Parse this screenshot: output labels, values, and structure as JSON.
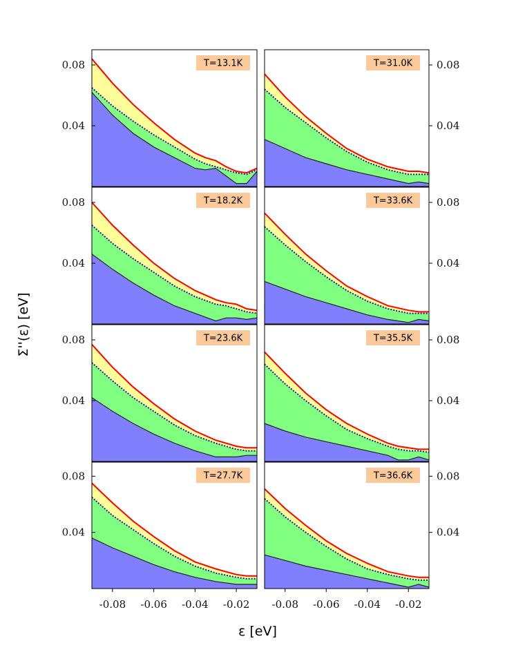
{
  "figure": {
    "ylabel": "Σ''(ε) [eV]",
    "xlabel": "ε [eV]",
    "colors": {
      "blue": "#8080ff",
      "green": "#80ff80",
      "yellow": "#ffff99",
      "red_line": "#ff0000",
      "dotted_line": "#1a1aa0",
      "label_box": "#fcc99a"
    }
  },
  "chart_data": [
    {
      "type": "area",
      "label": "T=13.1K",
      "xlim": [
        -0.09,
        -0.01
      ],
      "ylim": [
        0,
        0.09
      ],
      "yticks": [
        "0.08",
        "0.04"
      ],
      "ytick_values": [
        0.08,
        0.04
      ],
      "ytick_side": "left",
      "x": [
        -0.09,
        -0.08,
        -0.07,
        -0.06,
        -0.05,
        -0.04,
        -0.035,
        -0.03,
        -0.025,
        -0.02,
        -0.015,
        -0.01
      ],
      "red": [
        0.084,
        0.068,
        0.054,
        0.042,
        0.031,
        0.022,
        0.019,
        0.017,
        0.013,
        0.01,
        0.009,
        0.012
      ],
      "dotted": [
        0.065,
        0.053,
        0.043,
        0.034,
        0.026,
        0.018,
        0.015,
        0.013,
        0.011,
        0.009,
        0.008,
        0.011
      ],
      "blue": [
        0.062,
        0.047,
        0.035,
        0.026,
        0.019,
        0.012,
        0.011,
        0.012,
        0.007,
        0.002,
        0.002,
        0.01
      ]
    },
    {
      "type": "area",
      "label": "T=31.0K",
      "xlim": [
        -0.09,
        -0.01
      ],
      "ylim": [
        0,
        0.09
      ],
      "yticks": [
        "0.08",
        "0.04"
      ],
      "ytick_values": [
        0.08,
        0.04
      ],
      "ytick_side": "right",
      "x": [
        -0.09,
        -0.08,
        -0.07,
        -0.06,
        -0.05,
        -0.04,
        -0.03,
        -0.02,
        -0.015,
        -0.01
      ],
      "red": [
        0.074,
        0.059,
        0.046,
        0.035,
        0.025,
        0.018,
        0.013,
        0.01,
        0.01,
        0.009
      ],
      "dotted": [
        0.064,
        0.052,
        0.042,
        0.032,
        0.023,
        0.016,
        0.011,
        0.008,
        0.008,
        0.008
      ],
      "blue": [
        0.031,
        0.025,
        0.019,
        0.015,
        0.011,
        0.008,
        0.005,
        0.002,
        0.003,
        0.002
      ]
    },
    {
      "type": "area",
      "label": "T=18.2K",
      "xlim": [
        -0.09,
        -0.01
      ],
      "ylim": [
        0,
        0.09
      ],
      "yticks": [
        "0.08",
        "0.04"
      ],
      "ytick_values": [
        0.08,
        0.04
      ],
      "ytick_side": "left",
      "x": [
        -0.09,
        -0.08,
        -0.07,
        -0.06,
        -0.05,
        -0.04,
        -0.03,
        -0.025,
        -0.02,
        -0.015,
        -0.01
      ],
      "red": [
        0.08,
        0.065,
        0.052,
        0.04,
        0.03,
        0.022,
        0.016,
        0.014,
        0.013,
        0.01,
        0.009
      ],
      "dotted": [
        0.065,
        0.053,
        0.043,
        0.034,
        0.025,
        0.018,
        0.013,
        0.012,
        0.01,
        0.008,
        0.007
      ],
      "blue": [
        0.046,
        0.036,
        0.027,
        0.019,
        0.012,
        0.007,
        0.002,
        0.004,
        0.004,
        0.003,
        0.004
      ]
    },
    {
      "type": "area",
      "label": "T=33.6K",
      "xlim": [
        -0.09,
        -0.01
      ],
      "ylim": [
        0,
        0.09
      ],
      "yticks": [
        "0.08",
        "0.04"
      ],
      "ytick_values": [
        0.08,
        0.04
      ],
      "ytick_side": "right",
      "x": [
        -0.09,
        -0.08,
        -0.07,
        -0.06,
        -0.05,
        -0.04,
        -0.03,
        -0.02,
        -0.015,
        -0.01
      ],
      "red": [
        0.073,
        0.059,
        0.046,
        0.035,
        0.025,
        0.018,
        0.012,
        0.009,
        0.008,
        0.008
      ],
      "dotted": [
        0.064,
        0.052,
        0.041,
        0.031,
        0.022,
        0.015,
        0.01,
        0.007,
        0.007,
        0.007
      ],
      "blue": [
        0.028,
        0.023,
        0.018,
        0.014,
        0.01,
        0.006,
        0.003,
        0.001,
        0.003,
        0.002
      ]
    },
    {
      "type": "area",
      "label": "T=23.6K",
      "xlim": [
        -0.09,
        -0.01
      ],
      "ylim": [
        0,
        0.09
      ],
      "yticks": [
        "0.08",
        "0.04"
      ],
      "ytick_values": [
        0.08,
        0.04
      ],
      "ytick_side": "left",
      "x": [
        -0.09,
        -0.08,
        -0.07,
        -0.06,
        -0.05,
        -0.04,
        -0.03,
        -0.02,
        -0.015,
        -0.01
      ],
      "red": [
        0.077,
        0.062,
        0.049,
        0.038,
        0.028,
        0.02,
        0.014,
        0.01,
        0.009,
        0.009
      ],
      "dotted": [
        0.065,
        0.053,
        0.042,
        0.033,
        0.024,
        0.017,
        0.012,
        0.008,
        0.007,
        0.007
      ],
      "blue": [
        0.042,
        0.033,
        0.025,
        0.018,
        0.012,
        0.007,
        0.003,
        0.003,
        0.004,
        0.004
      ]
    },
    {
      "type": "area",
      "label": "T=35.5K",
      "xlim": [
        -0.09,
        -0.01
      ],
      "ylim": [
        0,
        0.09
      ],
      "yticks": [
        "0.08",
        "0.04"
      ],
      "ytick_values": [
        0.08,
        0.04
      ],
      "ytick_side": "right",
      "x": [
        -0.09,
        -0.08,
        -0.07,
        -0.06,
        -0.05,
        -0.04,
        -0.03,
        -0.025,
        -0.02,
        -0.015,
        -0.01
      ],
      "red": [
        0.072,
        0.058,
        0.045,
        0.034,
        0.025,
        0.018,
        0.012,
        0.01,
        0.009,
        0.008,
        0.008
      ],
      "dotted": [
        0.064,
        0.051,
        0.04,
        0.03,
        0.021,
        0.015,
        0.01,
        0.008,
        0.007,
        0.007,
        0.006
      ],
      "blue": [
        0.025,
        0.02,
        0.016,
        0.013,
        0.01,
        0.007,
        0.004,
        0.001,
        0.001,
        0.003,
        0.001
      ]
    },
    {
      "type": "area",
      "label": "T=27.7K",
      "xlim": [
        -0.09,
        -0.01
      ],
      "ylim": [
        0,
        0.09
      ],
      "yticks": [
        "0.08",
        "0.04"
      ],
      "ytick_values": [
        0.08,
        0.04
      ],
      "ytick_side": "left",
      "xticks": [
        "-0.08",
        "-0.06",
        "-0.04",
        "-0.02"
      ],
      "xtick_values": [
        -0.08,
        -0.06,
        -0.04,
        -0.02
      ],
      "x": [
        -0.09,
        -0.08,
        -0.07,
        -0.06,
        -0.05,
        -0.04,
        -0.03,
        -0.02,
        -0.015,
        -0.01
      ],
      "red": [
        0.075,
        0.061,
        0.048,
        0.037,
        0.027,
        0.019,
        0.014,
        0.01,
        0.009,
        0.009
      ],
      "dotted": [
        0.065,
        0.052,
        0.042,
        0.032,
        0.023,
        0.016,
        0.011,
        0.008,
        0.007,
        0.007
      ],
      "blue": [
        0.036,
        0.029,
        0.023,
        0.017,
        0.012,
        0.008,
        0.005,
        0.003,
        0.003,
        0.003
      ]
    },
    {
      "type": "area",
      "label": "T=36.6K",
      "xlim": [
        -0.09,
        -0.01
      ],
      "ylim": [
        0,
        0.09
      ],
      "yticks": [
        "0.08",
        "0.04"
      ],
      "ytick_values": [
        0.08,
        0.04
      ],
      "ytick_side": "right",
      "xticks": [
        "-0.08",
        "-0.06",
        "-0.04",
        "-0.02"
      ],
      "xtick_values": [
        -0.08,
        -0.06,
        -0.04,
        -0.02
      ],
      "x": [
        -0.09,
        -0.08,
        -0.07,
        -0.06,
        -0.05,
        -0.04,
        -0.03,
        -0.02,
        -0.015,
        -0.01
      ],
      "red": [
        0.071,
        0.057,
        0.045,
        0.034,
        0.025,
        0.018,
        0.012,
        0.009,
        0.008,
        0.008
      ],
      "dotted": [
        0.064,
        0.051,
        0.04,
        0.03,
        0.021,
        0.014,
        0.01,
        0.007,
        0.006,
        0.006
      ],
      "blue": [
        0.024,
        0.02,
        0.016,
        0.013,
        0.01,
        0.007,
        0.004,
        0.001,
        0.003,
        0.001
      ]
    }
  ]
}
